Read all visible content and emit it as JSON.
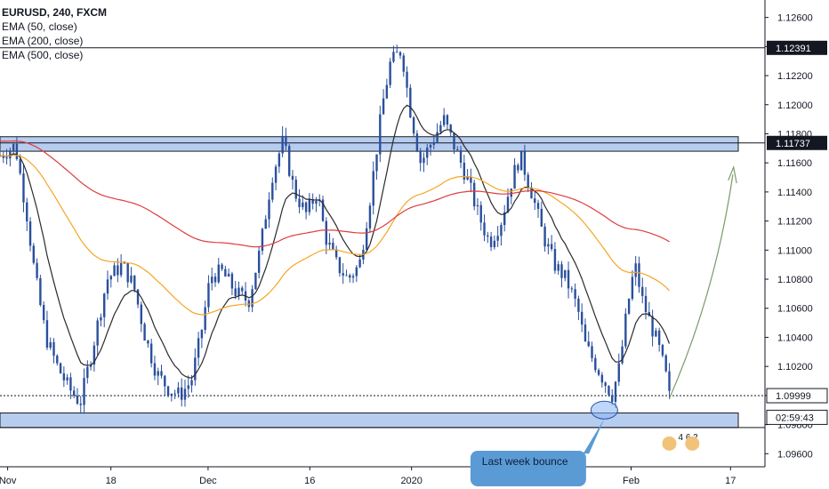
{
  "legend": {
    "title": "EURUSD, 240, FXCM",
    "ema1": "EMA (50, close)",
    "ema2": "EMA (200, close)",
    "ema3": "EMA (500, close)"
  },
  "colors": {
    "candle": "#2a4f9c",
    "ema50": "#2b2b2b",
    "ema200": "#f5a623",
    "ema500": "#e03c3c",
    "zone_fill": "#b7cdf0",
    "zone_border": "#1b1b1b",
    "arrow": "#7a9a6a",
    "callout": "#5b9bd5"
  },
  "price_labels": {
    "high": "1.12391",
    "resistance": "1.11737",
    "current": "1.09999",
    "countdown": "02:59:43"
  },
  "callout": {
    "text": "Last week bounce"
  },
  "badge": {
    "text": "4 6 2"
  },
  "chart_data": {
    "type": "candlestick",
    "title": "EURUSD, 240, FXCM",
    "x_tick_labels": [
      "Nov",
      "18",
      "Dec",
      "16",
      "2020",
      "20",
      "Feb",
      "17"
    ],
    "y_tick_labels": [
      "1.12600",
      "1.12400",
      "1.12200",
      "1.12000",
      "1.11800",
      "1.11600",
      "1.11400",
      "1.11200",
      "1.11000",
      "1.10800",
      "1.10600",
      "1.10400",
      "1.10200",
      "1.10000",
      "1.09800",
      "1.09600"
    ],
    "ylim": [
      1.0951,
      1.1272
    ],
    "series": [
      {
        "name": "EMA (50, close)",
        "type": "line"
      },
      {
        "name": "EMA (200, close)",
        "type": "line"
      },
      {
        "name": "EMA (500, close)",
        "type": "line"
      }
    ],
    "approx_close_path": [
      [
        0,
        1.1165
      ],
      [
        0.02,
        1.1172
      ],
      [
        0.035,
        1.1125
      ],
      [
        0.045,
        1.1085
      ],
      [
        0.06,
        1.104
      ],
      [
        0.075,
        1.102
      ],
      [
        0.09,
        1.1005
      ],
      [
        0.105,
        1.0995
      ],
      [
        0.12,
        1.103
      ],
      [
        0.14,
        1.108
      ],
      [
        0.16,
        1.109
      ],
      [
        0.175,
        1.1075
      ],
      [
        0.19,
        1.104
      ],
      [
        0.205,
        1.1015
      ],
      [
        0.22,
        1.1005
      ],
      [
        0.235,
        1.1
      ],
      [
        0.25,
        1.101
      ],
      [
        0.262,
        1.104
      ],
      [
        0.275,
        1.1082
      ],
      [
        0.29,
        1.1085
      ],
      [
        0.31,
        1.107
      ],
      [
        0.325,
        1.1065
      ],
      [
        0.34,
        1.11
      ],
      [
        0.355,
        1.115
      ],
      [
        0.37,
        1.1175
      ],
      [
        0.385,
        1.114
      ],
      [
        0.4,
        1.1125
      ],
      [
        0.415,
        1.114
      ],
      [
        0.425,
        1.111
      ],
      [
        0.44,
        1.109
      ],
      [
        0.455,
        1.108
      ],
      [
        0.47,
        1.109
      ],
      [
        0.485,
        1.114
      ],
      [
        0.5,
        1.12
      ],
      [
        0.51,
        1.1228
      ],
      [
        0.525,
        1.1238
      ],
      [
        0.535,
        1.12
      ],
      [
        0.55,
        1.116
      ],
      [
        0.565,
        1.1175
      ],
      [
        0.58,
        1.119
      ],
      [
        0.595,
        1.117
      ],
      [
        0.61,
        1.115
      ],
      [
        0.625,
        1.1125
      ],
      [
        0.64,
        1.1105
      ],
      [
        0.655,
        1.112
      ],
      [
        0.67,
        1.115
      ],
      [
        0.68,
        1.1165
      ],
      [
        0.695,
        1.114
      ],
      [
        0.71,
        1.111
      ],
      [
        0.725,
        1.109
      ],
      [
        0.74,
        1.108
      ],
      [
        0.755,
        1.106
      ],
      [
        0.765,
        1.1035
      ],
      [
        0.78,
        1.102
      ],
      [
        0.79,
        1.101
      ],
      [
        0.8,
        1.1
      ],
      [
        0.81,
        1.102
      ],
      [
        0.82,
        1.106
      ],
      [
        0.83,
        1.109
      ],
      [
        0.84,
        1.1065
      ],
      [
        0.85,
        1.105
      ],
      [
        0.86,
        1.1035
      ],
      [
        0.87,
        1.1015
      ],
      [
        0.875,
        1.0999
      ]
    ],
    "horizontal_levels": [
      1.12391,
      1.11737,
      1.09999
    ],
    "zones": [
      [
        1.1168,
        1.1178
      ],
      [
        1.0978,
        1.0988
      ]
    ]
  }
}
